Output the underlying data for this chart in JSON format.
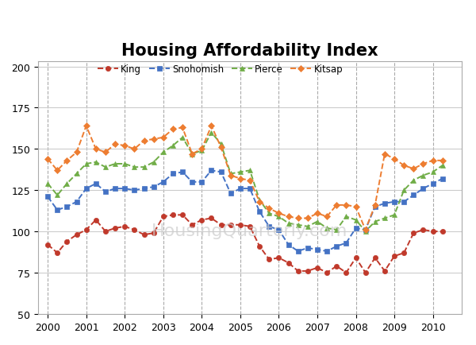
{
  "title": "Housing Affordability Index",
  "series": {
    "King": {
      "color": "#c0392b",
      "marker": "o",
      "values": [
        92,
        87,
        94,
        98,
        101,
        107,
        100,
        102,
        103,
        101,
        98,
        99,
        109,
        110,
        110,
        104,
        107,
        108,
        104,
        104,
        104,
        103,
        91,
        83,
        84,
        81,
        76,
        76,
        78,
        75,
        79,
        75,
        84,
        75,
        84,
        76,
        85,
        87,
        99,
        101,
        100,
        100
      ]
    },
    "Snohomish": {
      "color": "#4472c4",
      "marker": "s",
      "values": [
        121,
        113,
        115,
        118,
        126,
        129,
        124,
        126,
        126,
        125,
        126,
        127,
        130,
        135,
        136,
        130,
        130,
        137,
        136,
        123,
        126,
        126,
        112,
        103,
        101,
        92,
        88,
        90,
        89,
        88,
        91,
        93,
        102,
        101,
        115,
        117,
        118,
        118,
        122,
        126,
        129,
        132
      ]
    },
    "Pierce": {
      "color": "#70ad47",
      "marker": "^",
      "values": [
        129,
        122,
        129,
        135,
        141,
        142,
        139,
        141,
        141,
        139,
        139,
        142,
        148,
        152,
        157,
        147,
        149,
        160,
        153,
        135,
        136,
        137,
        119,
        111,
        109,
        105,
        104,
        103,
        106,
        102,
        101,
        109,
        107,
        100,
        106,
        108,
        110,
        125,
        131,
        134,
        136,
        140
      ]
    },
    "Kitsap": {
      "color": "#ed7d31",
      "marker": "D",
      "values": [
        144,
        137,
        143,
        148,
        164,
        150,
        148,
        153,
        152,
        150,
        155,
        156,
        157,
        162,
        163,
        147,
        150,
        164,
        151,
        134,
        132,
        131,
        118,
        114,
        111,
        109,
        108,
        108,
        111,
        109,
        116,
        116,
        115,
        101,
        116,
        147,
        144,
        140,
        138,
        141,
        143,
        143
      ]
    }
  },
  "x_start": 2000.0,
  "x_step": 0.25,
  "xlim": [
    1999.75,
    2010.75
  ],
  "ylim": [
    50,
    203
  ],
  "yticks": [
    50,
    75,
    100,
    125,
    150,
    175,
    200
  ],
  "xticks": [
    2000,
    2001,
    2002,
    2003,
    2004,
    2005,
    2006,
    2007,
    2008,
    2009,
    2010
  ],
  "background_color": "#ffffff",
  "grid_color_h": "#cccccc",
  "grid_color_v": "#aaaaaa",
  "watermark": "HousingQuarterly.com",
  "title_fontsize": 15,
  "legend_fontsize": 8.5,
  "tick_fontsize": 9
}
